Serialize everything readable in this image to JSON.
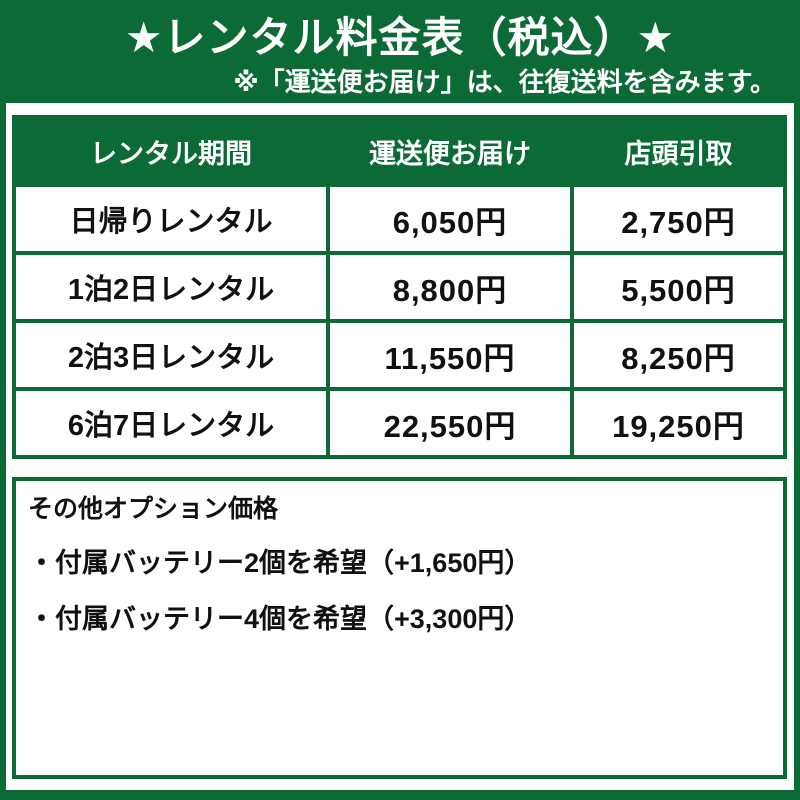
{
  "colors": {
    "green": "#0c6a37",
    "text": "#111111",
    "banner_text": "#ffffff",
    "cell_bg": "#ffffff"
  },
  "banner": {
    "title": "★レンタル料金表（税込）★",
    "note": "※「運送便お届け」は、往復送料を含みます。"
  },
  "price_table": {
    "headers": [
      "レンタル期間",
      "運送便お届け",
      "店頭引取"
    ],
    "rows": [
      {
        "period": "日帰りレンタル",
        "delivery": "6,050円",
        "pickup": "2,750円"
      },
      {
        "period": "1泊2日レンタル",
        "delivery": "8,800円",
        "pickup": "5,500円"
      },
      {
        "period": "2泊3日レンタル",
        "delivery": "11,550円",
        "pickup": "8,250円"
      },
      {
        "period": "6泊7日レンタル",
        "delivery": "22,550円",
        "pickup": "19,250円"
      }
    ]
  },
  "options": {
    "title": "その他オプション価格",
    "items": [
      "・付属バッテリー2個を希望（+1,650円）",
      "・付属バッテリー4個を希望（+3,300円）"
    ]
  }
}
